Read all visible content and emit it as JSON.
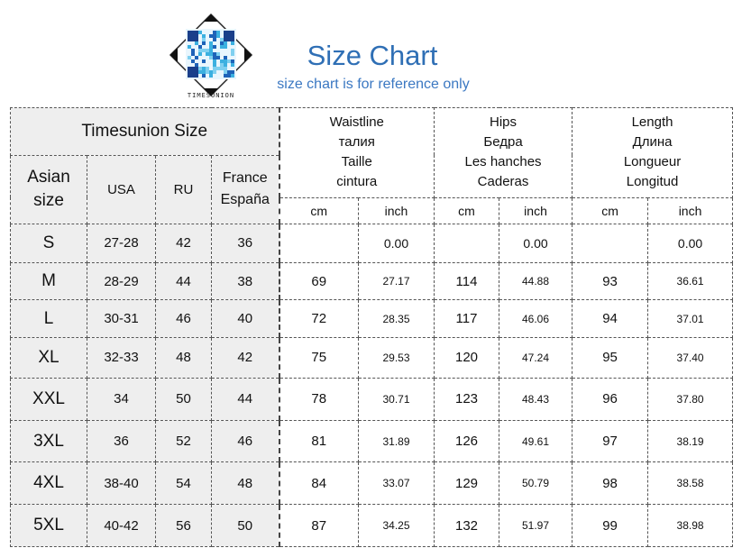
{
  "header": {
    "brand": "TIMESUNION",
    "title": "Size Chart",
    "subtitle": "size chart is for reference only"
  },
  "table": {
    "size_group": "Timesunion Size",
    "columns": {
      "asian": "Asian size",
      "usa": "USA",
      "ru": "RU",
      "fr": "France España"
    },
    "measures": [
      {
        "key": "waist",
        "lines": [
          "Waistline",
          "талия",
          "Taille",
          "cintura"
        ]
      },
      {
        "key": "hips",
        "lines": [
          "Hips",
          "Бедра",
          "Les hanches",
          "Caderas"
        ]
      },
      {
        "key": "length",
        "lines": [
          "Length",
          "Длина",
          "Longueur",
          "Longitud"
        ]
      }
    ],
    "units": {
      "cm": "cm",
      "inch": "inch"
    },
    "rows": [
      {
        "size": "S",
        "usa": "27-28",
        "ru": "42",
        "fr": "36",
        "waist_cm": "",
        "waist_in": "0.00",
        "hips_cm": "",
        "hips_in": "0.00",
        "len_cm": "",
        "len_in": "0.00"
      },
      {
        "size": "M",
        "usa": "28-29",
        "ru": "44",
        "fr": "38",
        "waist_cm": "69",
        "waist_in": "27.17",
        "hips_cm": "114",
        "hips_in": "44.88",
        "len_cm": "93",
        "len_in": "36.61"
      },
      {
        "size": "L",
        "usa": "30-31",
        "ru": "46",
        "fr": "40",
        "waist_cm": "72",
        "waist_in": "28.35",
        "hips_cm": "117",
        "hips_in": "46.06",
        "len_cm": "94",
        "len_in": "37.01"
      },
      {
        "size": "XL",
        "usa": "32-33",
        "ru": "48",
        "fr": "42",
        "waist_cm": "75",
        "waist_in": "29.53",
        "hips_cm": "120",
        "hips_in": "47.24",
        "len_cm": "95",
        "len_in": "37.40"
      },
      {
        "size": "XXL",
        "usa": "34",
        "ru": "50",
        "fr": "44",
        "waist_cm": "78",
        "waist_in": "30.71",
        "hips_cm": "123",
        "hips_in": "48.43",
        "len_cm": "96",
        "len_in": "37.80"
      },
      {
        "size": "3XL",
        "usa": "36",
        "ru": "52",
        "fr": "46",
        "waist_cm": "81",
        "waist_in": "31.89",
        "hips_cm": "126",
        "hips_in": "49.61",
        "len_cm": "97",
        "len_in": "38.19"
      },
      {
        "size": "4XL",
        "usa": "38-40",
        "ru": "54",
        "fr": "48",
        "waist_cm": "84",
        "waist_in": "33.07",
        "hips_cm": "129",
        "hips_in": "50.79",
        "len_cm": "98",
        "len_in": "38.58"
      },
      {
        "size": "5XL",
        "usa": "40-42",
        "ru": "56",
        "fr": "50",
        "waist_cm": "87",
        "waist_in": "34.25",
        "hips_cm": "132",
        "hips_in": "51.97",
        "len_cm": "99",
        "len_in": "38.98"
      }
    ]
  },
  "colors": {
    "title": "#2f6fb5",
    "subtitle": "#3b78c2",
    "shade": "#eeeeee",
    "logo_tiles": [
      "#1e63b8",
      "#3bb0e0",
      "#7fd0f0",
      "#1a3f8a"
    ]
  }
}
